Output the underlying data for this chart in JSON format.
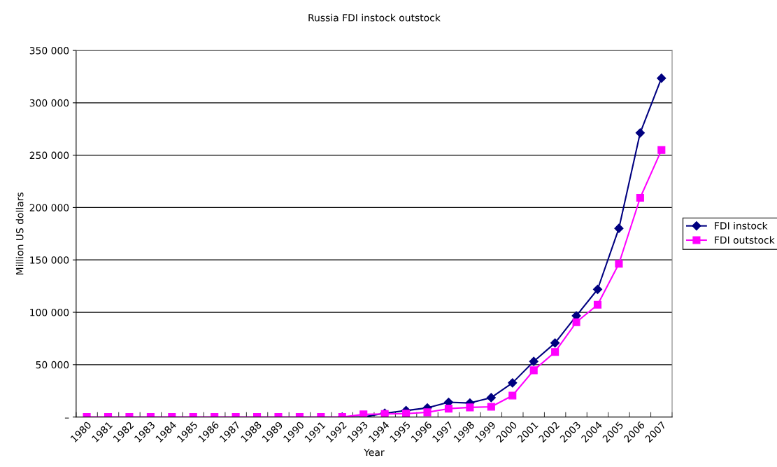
{
  "chart_data": {
    "type": "line",
    "title": "Russia FDI instock outstock",
    "xlabel": "Year",
    "ylabel": "Million US dollars",
    "categories": [
      "1980",
      "1981",
      "1982",
      "1983",
      "1984",
      "1985",
      "1986",
      "1987",
      "1988",
      "1989",
      "1990",
      "1991",
      "1992",
      "1993",
      "1994",
      "1995",
      "1996",
      "1997",
      "1998",
      "1999",
      "2000",
      "2001",
      "2002",
      "2003",
      "2004",
      "2005",
      "2006",
      "2007"
    ],
    "series": [
      {
        "name": "FDI instock",
        "color": "#000080",
        "marker": "diamond",
        "values": [
          null,
          null,
          null,
          null,
          null,
          null,
          null,
          null,
          null,
          null,
          null,
          null,
          0,
          0,
          3600,
          6200,
          8700,
          14100,
          13400,
          18500,
          32600,
          53100,
          70700,
          96600,
          121900,
          180100,
          271300,
          323500
        ]
      },
      {
        "name": "FDI outstock",
        "color": "#ff00ff",
        "marker": "square",
        "values": [
          0,
          0,
          0,
          0,
          0,
          0,
          0,
          0,
          0,
          0,
          0,
          0,
          0,
          2500,
          2900,
          3300,
          4500,
          8000,
          9200,
          9800,
          20500,
          44600,
          62100,
          90500,
          107200,
          146300,
          209300,
          254900
        ]
      }
    ],
    "ylim": [
      0,
      350000
    ],
    "yticks": [
      {
        "value": 0,
        "label": "–"
      },
      {
        "value": 50000,
        "label": "50 000"
      },
      {
        "value": 100000,
        "label": "100 000"
      },
      {
        "value": 150000,
        "label": "150 000"
      },
      {
        "value": 200000,
        "label": "200 000"
      },
      {
        "value": 250000,
        "label": "250 000"
      },
      {
        "value": 300000,
        "label": "300 000"
      },
      {
        "value": 350000,
        "label": "350 000"
      }
    ],
    "grid": "y",
    "legend": "right",
    "line_style": "solid"
  }
}
